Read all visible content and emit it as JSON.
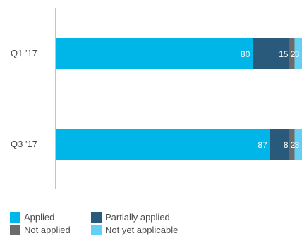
{
  "chart_data": {
    "type": "bar",
    "orientation": "horizontal",
    "stacked": true,
    "categories": [
      "Q1 '17",
      "Q3 '17"
    ],
    "series": [
      {
        "name": "Applied",
        "color": "#00b5e8",
        "values": [
          80,
          87
        ],
        "labels": [
          "80",
          "87"
        ]
      },
      {
        "name": "Partially applied",
        "color": "#2a5a7b",
        "values": [
          15,
          8
        ],
        "labels": [
          "15",
          "8"
        ]
      },
      {
        "name": "Not applied",
        "color": "#6b6b6b",
        "values": [
          2,
          2
        ],
        "labels": [
          "2",
          "2"
        ]
      },
      {
        "name": "Not yet applicable",
        "color": "#62d0f5",
        "values": [
          3,
          3
        ],
        "labels": [
          "3",
          "3"
        ]
      }
    ],
    "xlim": [
      0,
      100
    ],
    "grid": false,
    "legend_position": "bottom"
  }
}
